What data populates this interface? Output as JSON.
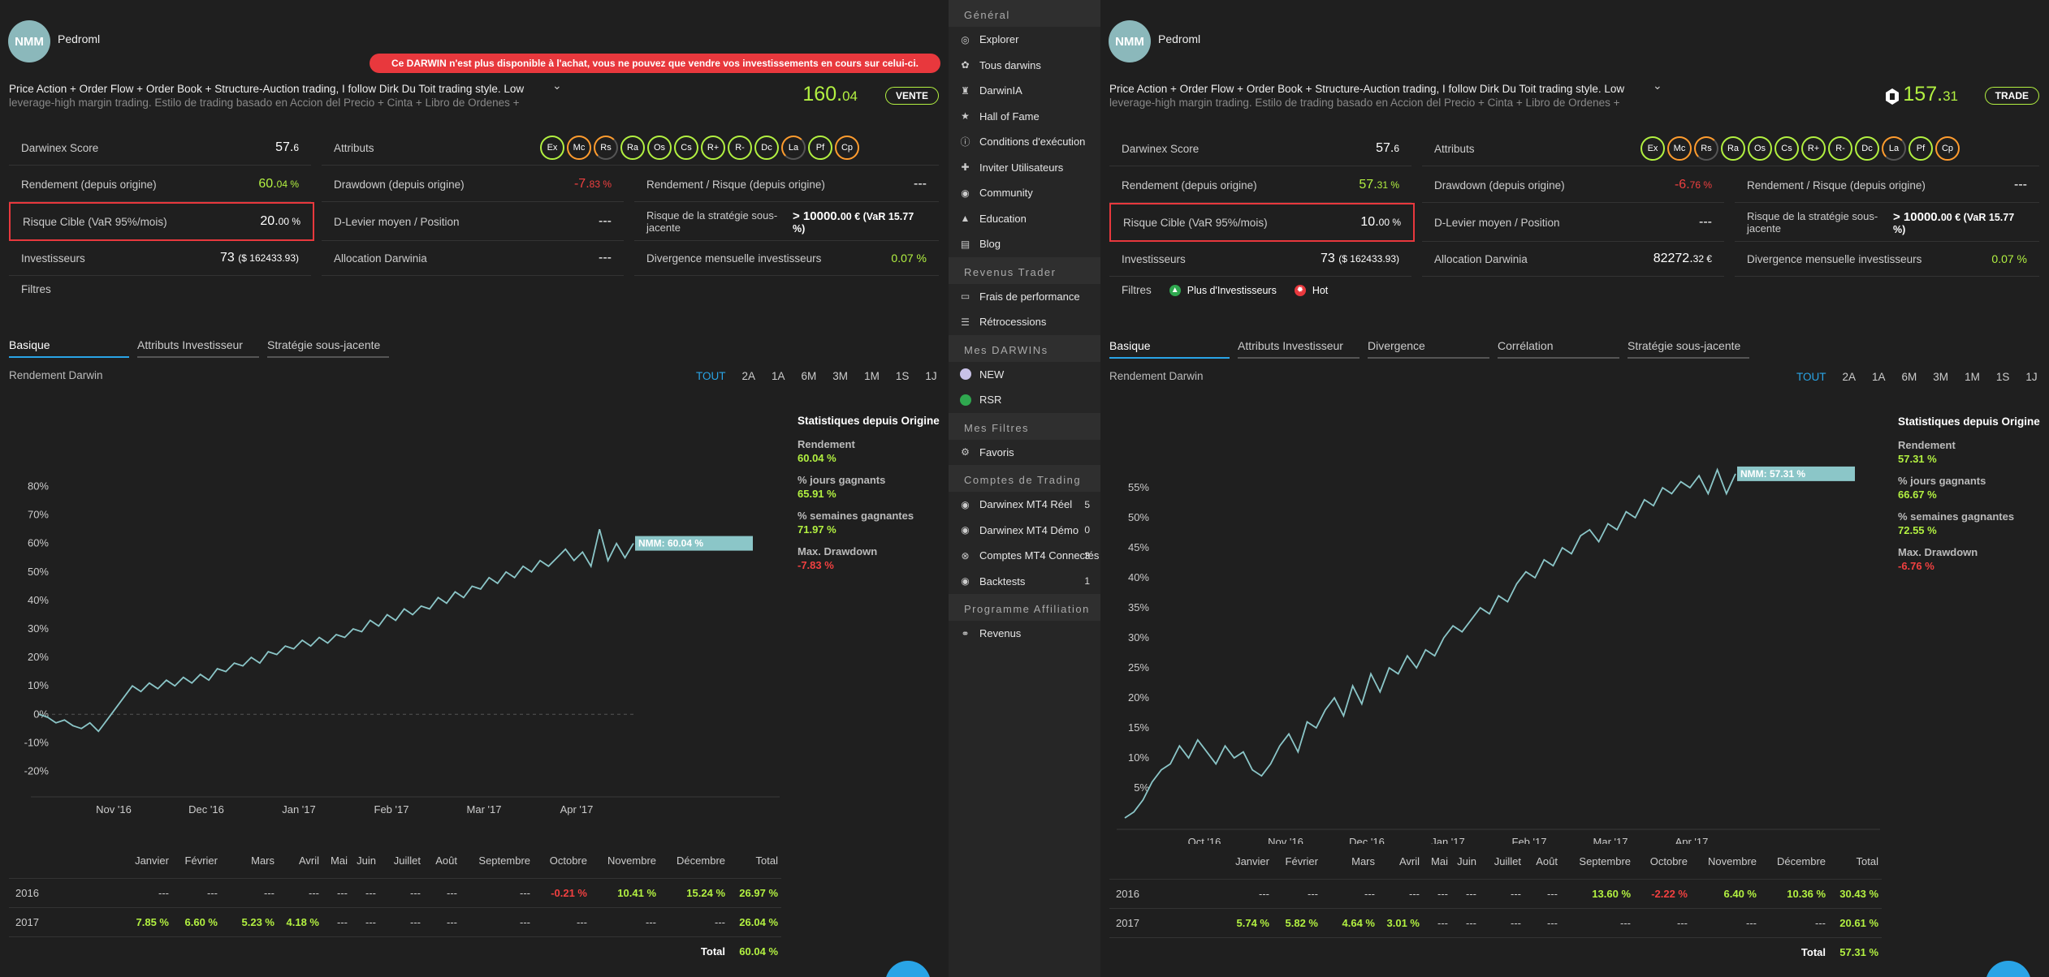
{
  "colors": {
    "green": "#b2f041",
    "red": "#f04040",
    "blue": "#29a4e6",
    "avatar": "#8bb8bb",
    "line": "#8bc6c8"
  },
  "left": {
    "avatar": "NMM",
    "username": "Pedroml",
    "banner": "Ce DARWIN n'est plus disponible à l'achat, vous ne pouvez que vendre vos investissements en cours sur celui-ci.",
    "desc1": "Price Action + Order Flow + Order Book + Structure-Auction trading, I follow Dirk Du Toit trading style. Low",
    "desc2": "leverage-high margin trading. Estilo de trading basado en Accion del Precio + Cinta + Libro de Ordenes +",
    "price_int": "160.",
    "price_dec": "04",
    "action": "VENTE",
    "score_label": "Darwinex Score",
    "score_int": "57.",
    "score_dec": "6",
    "attr_label": "Attributs",
    "attrs": [
      "Ex",
      "Mc",
      "Rs",
      "Ra",
      "Os",
      "Cs",
      "R+",
      "R-",
      "Dc",
      "La",
      "Pf",
      "Cp"
    ],
    "rend_label": "Rendement (depuis origine)",
    "rend_int": "60.",
    "rend_dec": "04 %",
    "dd_label": "Drawdown (depuis origine)",
    "dd_int": "-7.",
    "dd_dec": "83 %",
    "rr_label": "Rendement / Risque (depuis origine)",
    "rr_val": "---",
    "risk_label": "Risque Cible (VaR 95%/mois)",
    "risk_int": "20.",
    "risk_dec": "00 %",
    "lev_label": "D-Levier moyen / Position",
    "lev_val": "---",
    "strat_label": "Risque de la stratégie sous-jacente",
    "strat_val1": "> 10000.",
    "strat_val1b": "00 € (VaR 15.77",
    "strat_val2": "%)",
    "inv_label": "Investisseurs",
    "inv_val": "73",
    "inv_sub": "($ 162433.93)",
    "alloc_label": "Allocation Darwinia",
    "alloc_val": "---",
    "div_label": "Divergence mensuelle investisseurs",
    "div_val": "0.07 %",
    "filters_label": "Filtres",
    "tabs": [
      "Basique",
      "Attributs Investisseur",
      "Stratégie sous-jacente"
    ],
    "rend_darwin": "Rendement Darwin",
    "periods": [
      "TOUT",
      "2A",
      "1A",
      "6M",
      "3M",
      "1M",
      "1S",
      "1J"
    ],
    "stats": {
      "title": "Statistiques depuis Origine",
      "k1": "Rendement",
      "v1": "60.04 %",
      "k2": "% jours gagnants",
      "v2": "65.91 %",
      "k3": "% semaines gagnantes",
      "v3": "71.97 %",
      "k4": "Max. Drawdown",
      "v4": "-7.83 %"
    },
    "months": [
      "Janvier",
      "Février",
      "Mars",
      "Avril",
      "Mai",
      "Juin",
      "Juillet",
      "Août",
      "Septembre",
      "Octobre",
      "Novembre",
      "Décembre",
      "Total"
    ],
    "rows": [
      {
        "year": "2016",
        "cells": [
          "---",
          "---",
          "---",
          "---",
          "---",
          "---",
          "---",
          "---",
          "---",
          "-0.21 %",
          "10.41 %",
          "15.24 %",
          "26.97 %"
        ]
      },
      {
        "year": "2017",
        "cells": [
          "7.85 %",
          "6.60 %",
          "5.23 %",
          "4.18 %",
          "---",
          "---",
          "---",
          "---",
          "---",
          "---",
          "---",
          "---",
          "26.04 %"
        ]
      }
    ],
    "total_label": "Total",
    "total_val": "60.04 %"
  },
  "right": {
    "avatar": "NMM",
    "username": "Pedroml",
    "desc1": "Price Action + Order Flow + Order Book + Structure-Auction trading, I follow Dirk Du Toit trading style. Low",
    "desc2": "leverage-high margin trading. Estilo de trading basado en Accion del Precio + Cinta + Libro de Ordenes +",
    "price_int": "157.",
    "price_dec": "31",
    "action": "TRADE",
    "score_label": "Darwinex Score",
    "score_int": "57.",
    "score_dec": "6",
    "attr_label": "Attributs",
    "attrs": [
      "Ex",
      "Mc",
      "Rs",
      "Ra",
      "Os",
      "Cs",
      "R+",
      "R-",
      "Dc",
      "La",
      "Pf",
      "Cp"
    ],
    "rend_label": "Rendement (depuis origine)",
    "rend_int": "57.",
    "rend_dec": "31 %",
    "dd_label": "Drawdown (depuis origine)",
    "dd_int": "-6.",
    "dd_dec": "76 %",
    "rr_label": "Rendement / Risque (depuis origine)",
    "rr_val": "---",
    "risk_label": "Risque Cible (VaR 95%/mois)",
    "risk_int": "10.",
    "risk_dec": "00 %",
    "lev_label": "D-Levier moyen / Position",
    "lev_val": "---",
    "strat_label": "Risque de la stratégie sous-jacente",
    "strat_val1": "> 10000.",
    "strat_val1b": "00 € (VaR 15.77",
    "strat_val2": "%)",
    "inv_label": "Investisseurs",
    "inv_val": "73",
    "inv_sub": "($ 162433.93)",
    "alloc_label": "Allocation Darwinia",
    "alloc_int": "82272.",
    "alloc_dec": "32 €",
    "div_label": "Divergence mensuelle investisseurs",
    "div_val": "0.07 %",
    "filters_label": "Filtres",
    "chip1": "Plus d'Investisseurs",
    "chip2": "Hot",
    "tabs": [
      "Basique",
      "Attributs Investisseur",
      "Divergence",
      "Corrélation",
      "Stratégie sous-jacente"
    ],
    "rend_darwin": "Rendement Darwin",
    "periods": [
      "TOUT",
      "2A",
      "1A",
      "6M",
      "3M",
      "1M",
      "1S",
      "1J"
    ],
    "stats": {
      "title": "Statistiques depuis Origine",
      "k1": "Rendement",
      "v1": "57.31 %",
      "k2": "% jours gagnants",
      "v2": "66.67 %",
      "k3": "% semaines gagnantes",
      "v3": "72.55 %",
      "k4": "Max. Drawdown",
      "v4": "-6.76 %"
    },
    "months": [
      "Janvier",
      "Février",
      "Mars",
      "Avril",
      "Mai",
      "Juin",
      "Juillet",
      "Août",
      "Septembre",
      "Octobre",
      "Novembre",
      "Décembre",
      "Total"
    ],
    "rows": [
      {
        "year": "2016",
        "cells": [
          "---",
          "---",
          "---",
          "---",
          "---",
          "---",
          "---",
          "---",
          "13.60 %",
          "-2.22 %",
          "6.40 %",
          "10.36 %",
          "30.43 %"
        ]
      },
      {
        "year": "2017",
        "cells": [
          "5.74 %",
          "5.82 %",
          "4.64 %",
          "3.01 %",
          "---",
          "---",
          "---",
          "---",
          "---",
          "---",
          "---",
          "---",
          "20.61 %"
        ]
      }
    ],
    "total_label": "Total",
    "total_val": "57.31 %"
  },
  "nav": [
    {
      "type": "sec",
      "label": "Général"
    },
    {
      "type": "item",
      "label": "Explorer",
      "icon": "compass-icon",
      "glyph": "◎"
    },
    {
      "type": "item",
      "label": "Tous darwins",
      "icon": "paw-icon",
      "glyph": "✿"
    },
    {
      "type": "item",
      "label": "DarwinIA",
      "icon": "trophy-icon",
      "glyph": "♜"
    },
    {
      "type": "item",
      "label": "Hall of Fame",
      "icon": "star-icon",
      "glyph": "★"
    },
    {
      "type": "item",
      "label": "Conditions d'exécution",
      "icon": "info-icon",
      "glyph": "ⓘ"
    },
    {
      "type": "item",
      "label": "Inviter Utilisateurs",
      "icon": "add-user-icon",
      "glyph": "✚"
    },
    {
      "type": "item",
      "label": "Community",
      "icon": "globe-icon",
      "glyph": "◉"
    },
    {
      "type": "item",
      "label": "Education",
      "icon": "graduation-cap-icon",
      "glyph": "▲"
    },
    {
      "type": "item",
      "label": "Blog",
      "icon": "document-icon",
      "glyph": "▤"
    },
    {
      "type": "sec",
      "label": "Revenus Trader"
    },
    {
      "type": "item",
      "label": "Frais de performance",
      "icon": "money-icon",
      "glyph": "▭"
    },
    {
      "type": "item",
      "label": "Rétrocessions",
      "icon": "list-icon",
      "glyph": "☰"
    },
    {
      "type": "sec",
      "label": "Mes DARWINs"
    },
    {
      "type": "item",
      "label": "NEW",
      "icon": "lavender-dot-icon",
      "dot": "#c9c2e8"
    },
    {
      "type": "item",
      "label": "RSR",
      "icon": "green-dot-icon",
      "dot": "#2fa84f"
    },
    {
      "type": "sec",
      "label": "Mes Filtres"
    },
    {
      "type": "item",
      "label": "Favoris",
      "icon": "gear-icon",
      "glyph": "⚙"
    },
    {
      "type": "sec",
      "label": "Comptes de Trading"
    },
    {
      "type": "item",
      "label": "Darwinex MT4 Réel",
      "icon": "ring-icon",
      "glyph": "◉",
      "count": "5"
    },
    {
      "type": "item",
      "label": "Darwinex MT4 Démo",
      "icon": "ring-icon",
      "glyph": "◉",
      "count": "0"
    },
    {
      "type": "item",
      "label": "Comptes MT4 Connectés",
      "icon": "link-icon",
      "glyph": "⊗",
      "count": "3"
    },
    {
      "type": "item",
      "label": "Backtests",
      "icon": "ring-icon",
      "glyph": "◉",
      "count": "1"
    },
    {
      "type": "sec",
      "label": "Programme Affiliation"
    },
    {
      "type": "item",
      "label": "Revenus",
      "icon": "handshake-icon",
      "glyph": "⚭"
    }
  ],
  "chart_data": [
    {
      "type": "line",
      "title": "",
      "series": [
        {
          "name": "NMM",
          "label": "NMM: 60.04 %",
          "values": [
            0,
            -1,
            -3,
            -2,
            -4,
            -5,
            -3,
            -6,
            -2,
            2,
            6,
            10,
            8,
            11,
            9,
            12,
            10,
            13,
            11,
            14,
            12,
            16,
            15,
            18,
            17,
            20,
            18,
            22,
            21,
            24,
            23,
            26,
            24,
            27,
            25,
            28,
            27,
            30,
            29,
            33,
            31,
            35,
            33,
            37,
            35,
            38,
            37,
            41,
            39,
            43,
            41,
            45,
            44,
            48,
            46,
            50,
            48,
            52,
            50,
            54,
            52,
            55,
            58,
            54,
            57,
            52,
            65,
            54,
            60,
            55,
            60.04
          ]
        }
      ],
      "xticks": [
        "Nov '16",
        "Dec '16",
        "Jan '17",
        "Feb '17",
        "Mar '17",
        "Apr '17"
      ],
      "yticks": [
        "80%",
        "70%",
        "60%",
        "50%",
        "40%",
        "30%",
        "20%",
        "10%",
        "0%",
        "-10%",
        "-20%"
      ],
      "ylim": [
        -25,
        85
      ]
    },
    {
      "type": "line",
      "title": "",
      "series": [
        {
          "name": "NMM",
          "label": "NMM: 57.31 %",
          "values": [
            0,
            1,
            3,
            6,
            8,
            9,
            12,
            10,
            13,
            11,
            9,
            12,
            10,
            11,
            8,
            7,
            9,
            12,
            14,
            11,
            16,
            15,
            18,
            20,
            17,
            22,
            19,
            24,
            21,
            25,
            24,
            27,
            25,
            28,
            27,
            30,
            32,
            31,
            33,
            35,
            34,
            37,
            36,
            39,
            41,
            40,
            43,
            42,
            45,
            44,
            47,
            48,
            46,
            49,
            48,
            51,
            50,
            53,
            52,
            55,
            54,
            56,
            55,
            57,
            54,
            58,
            54,
            57.31
          ]
        }
      ],
      "xticks": [
        "Oct '16",
        "Nov '16",
        "Dec '16",
        "Jan '17",
        "Feb '17",
        "Mar '17",
        "Apr '17"
      ],
      "yticks": [
        "55%",
        "50%",
        "45%",
        "40%",
        "35%",
        "30%",
        "25%",
        "20%",
        "15%",
        "10%",
        "5%"
      ],
      "ylim": [
        0,
        60
      ]
    }
  ]
}
